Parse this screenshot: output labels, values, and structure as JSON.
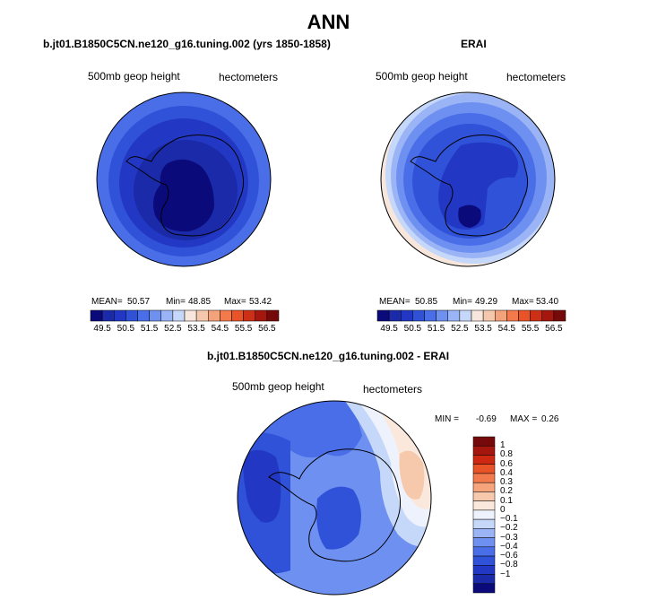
{
  "figure": {
    "title": "ANN"
  },
  "panels": [
    {
      "title": "b.jt01.B1850C5CN.ne120_g16.tuning.002 (yrs 1850-1858)",
      "variable_label": "500mb geop height",
      "units_label": "hectometers",
      "stats": {
        "mean_label": "MEAN=",
        "mean": "50.57",
        "min_label": "Min=",
        "min": "48.85",
        "max_label": "Max=",
        "max": "53.42"
      }
    },
    {
      "title": "ERAI",
      "variable_label": "500mb geop height",
      "units_label": "hectometers",
      "stats": {
        "mean_label": "MEAN=",
        "mean": "50.85",
        "min_label": "Min=",
        "min": "49.29",
        "max_label": "Max=",
        "max": "53.40"
      }
    },
    {
      "title": "b.jt01.B1850C5CN.ne120_g16.tuning.002 - ERAI",
      "variable_label": "500mb geop height",
      "units_label": "hectometers",
      "stats": {
        "min_label": "MIN =",
        "min": "-0.69",
        "max_label": "MAX =",
        "max": "0.26"
      }
    }
  ],
  "colorbars": {
    "absolute": {
      "colors": [
        "#0a0a7a",
        "#1a2aa8",
        "#2238c4",
        "#2f52d8",
        "#4a6ee8",
        "#6e90f0",
        "#9ab4f6",
        "#c6d8fa",
        "#f7e6dc",
        "#f4c8ac",
        "#f4a27a",
        "#f27a4c",
        "#e85428",
        "#cc3016",
        "#a4160e",
        "#760a0a"
      ],
      "tick_labels": [
        "49.5",
        "50.5",
        "51.5",
        "52.5",
        "53.5",
        "54.5",
        "55.5",
        "56.5"
      ]
    },
    "difference": {
      "colors": [
        "#0a0a7a",
        "#1a2aa8",
        "#2238c4",
        "#2f52d8",
        "#4a6ee8",
        "#6e90f0",
        "#9ab4f6",
        "#c6d8fa",
        "#eef2fc",
        "#fbe8dc",
        "#f6c8ac",
        "#f6a47c",
        "#f27a4c",
        "#e85428",
        "#cc2812",
        "#a4160e",
        "#760a0a"
      ],
      "tick_labels": [
        "1",
        "0.8",
        "0.6",
        "0.4",
        "0.3",
        "0.2",
        "0.1",
        "0",
        "−0.1",
        "−0.2",
        "−0.3",
        "−0.4",
        "−0.6",
        "−0.8",
        "−1"
      ]
    }
  }
}
